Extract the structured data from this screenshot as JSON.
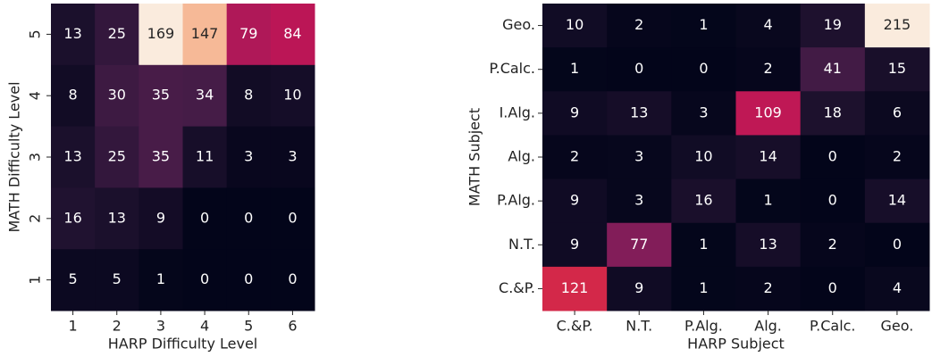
{
  "chart_data": [
    {
      "type": "heatmap",
      "colormap": "rocket",
      "xlabel": "HARP Difficulty Level",
      "ylabel": "MATH Difficulty Level",
      "x": [
        "1",
        "2",
        "3",
        "4",
        "5",
        "6"
      ],
      "y": [
        "5",
        "4",
        "3",
        "2",
        "1"
      ],
      "values": [
        [
          13,
          25,
          169,
          147,
          79,
          84
        ],
        [
          8,
          30,
          35,
          34,
          8,
          10
        ],
        [
          13,
          25,
          35,
          11,
          3,
          3
        ],
        [
          16,
          13,
          9,
          0,
          0,
          0
        ],
        [
          5,
          5,
          1,
          0,
          0,
          0
        ]
      ]
    },
    {
      "type": "heatmap",
      "colormap": "rocket",
      "xlabel": "HARP Subject",
      "ylabel": "MATH Subject",
      "x": [
        "C.&P.",
        "N.T.",
        "P.Alg.",
        "Alg.",
        "P.Calc.",
        "Geo."
      ],
      "y": [
        "Geo.",
        "P.Calc.",
        "I.Alg.",
        "Alg.",
        "P.Alg.",
        "N.T.",
        "C.&P."
      ],
      "values": [
        [
          10,
          2,
          1,
          4,
          19,
          215
        ],
        [
          1,
          0,
          0,
          2,
          41,
          15
        ],
        [
          9,
          13,
          3,
          109,
          18,
          6
        ],
        [
          2,
          3,
          10,
          14,
          0,
          2
        ],
        [
          9,
          3,
          16,
          1,
          0,
          14
        ],
        [
          9,
          77,
          1,
          13,
          2,
          0
        ],
        [
          121,
          9,
          1,
          2,
          0,
          4
        ]
      ]
    }
  ]
}
